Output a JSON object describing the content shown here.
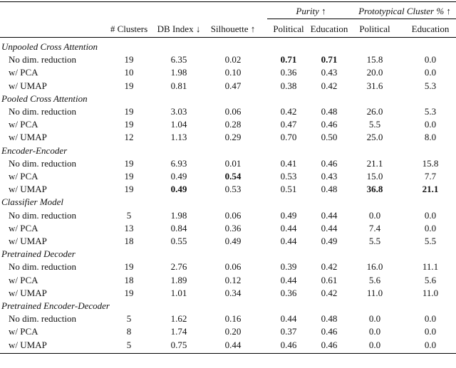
{
  "table": {
    "groups": [
      {
        "label": "Purity ↑",
        "from": 3,
        "to": 4
      },
      {
        "label": "Prototypical Cluster % ↑",
        "from": 5,
        "to": 6
      }
    ],
    "columns": [
      "# Clusters",
      "DB Index ↓",
      "Silhouette ↑",
      "Political",
      "Education",
      "Political",
      "Education"
    ],
    "sections": [
      {
        "title": "Unpooled Cross Attention",
        "rows": [
          {
            "label": "No dim. reduction",
            "cells": [
              "19",
              "6.35",
              "0.02",
              "0.71",
              "0.71",
              "15.8",
              "0.0"
            ],
            "bold": [
              3,
              4
            ]
          },
          {
            "label": "w/ PCA",
            "cells": [
              "10",
              "1.98",
              "0.10",
              "0.36",
              "0.43",
              "20.0",
              "0.0"
            ],
            "bold": []
          },
          {
            "label": "w/ UMAP",
            "cells": [
              "19",
              "0.81",
              "0.47",
              "0.38",
              "0.42",
              "31.6",
              "5.3"
            ],
            "bold": []
          }
        ]
      },
      {
        "title": "Pooled Cross Attention",
        "rows": [
          {
            "label": "No dim. reduction",
            "cells": [
              "19",
              "3.03",
              "0.06",
              "0.42",
              "0.48",
              "26.0",
              "5.3"
            ],
            "bold": []
          },
          {
            "label": "w/ PCA",
            "cells": [
              "19",
              "1.04",
              "0.28",
              "0.47",
              "0.46",
              "5.5",
              "0.0"
            ],
            "bold": []
          },
          {
            "label": "w/ UMAP",
            "cells": [
              "12",
              "1.13",
              "0.29",
              "0.70",
              "0.50",
              "25.0",
              "8.0"
            ],
            "bold": []
          }
        ]
      },
      {
        "title": "Encoder-Encoder",
        "rows": [
          {
            "label": "No dim. reduction",
            "cells": [
              "19",
              "6.93",
              "0.01",
              "0.41",
              "0.46",
              "21.1",
              "15.8"
            ],
            "bold": []
          },
          {
            "label": "w/ PCA",
            "cells": [
              "19",
              "0.49",
              "0.54",
              "0.53",
              "0.43",
              "15.0",
              "7.7"
            ],
            "bold": [
              2
            ]
          },
          {
            "label": "w/ UMAP",
            "cells": [
              "19",
              "0.49",
              "0.53",
              "0.51",
              "0.48",
              "36.8",
              "21.1"
            ],
            "bold": [
              1,
              5,
              6
            ]
          }
        ]
      },
      {
        "title": "Classifier Model",
        "rows": [
          {
            "label": "No dim. reduction",
            "cells": [
              "5",
              "1.98",
              "0.06",
              "0.49",
              "0.44",
              "0.0",
              "0.0"
            ],
            "bold": []
          },
          {
            "label": "w/ PCA",
            "cells": [
              "13",
              "0.84",
              "0.36",
              "0.44",
              "0.44",
              "7.4",
              "0.0"
            ],
            "bold": []
          },
          {
            "label": "w/ UMAP",
            "cells": [
              "18",
              "0.55",
              "0.49",
              "0.44",
              "0.49",
              "5.5",
              "5.5"
            ],
            "bold": []
          }
        ]
      },
      {
        "title": "Pretrained Decoder",
        "rows": [
          {
            "label": "No dim. reduction",
            "cells": [
              "19",
              "2.76",
              "0.06",
              "0.39",
              "0.42",
              "16.0",
              "11.1"
            ],
            "bold": []
          },
          {
            "label": "w/ PCA",
            "cells": [
              "18",
              "1.89",
              "0.12",
              "0.44",
              "0.61",
              "5.6",
              "5.6"
            ],
            "bold": []
          },
          {
            "label": "w/ UMAP",
            "cells": [
              "19",
              "1.01",
              "0.34",
              "0.36",
              "0.42",
              "11.0",
              "11.0"
            ],
            "bold": []
          }
        ]
      },
      {
        "title": "Pretrained Encoder-Decoder",
        "rows": [
          {
            "label": "No dim. reduction",
            "cells": [
              "5",
              "1.62",
              "0.16",
              "0.44",
              "0.48",
              "0.0",
              "0.0"
            ],
            "bold": []
          },
          {
            "label": "w/ PCA",
            "cells": [
              "8",
              "1.74",
              "0.20",
              "0.37",
              "0.46",
              "0.0",
              "0.0"
            ],
            "bold": []
          },
          {
            "label": "w/ UMAP",
            "cells": [
              "5",
              "0.75",
              "0.44",
              "0.46",
              "0.46",
              "0.0",
              "0.0"
            ],
            "bold": []
          }
        ]
      }
    ]
  }
}
